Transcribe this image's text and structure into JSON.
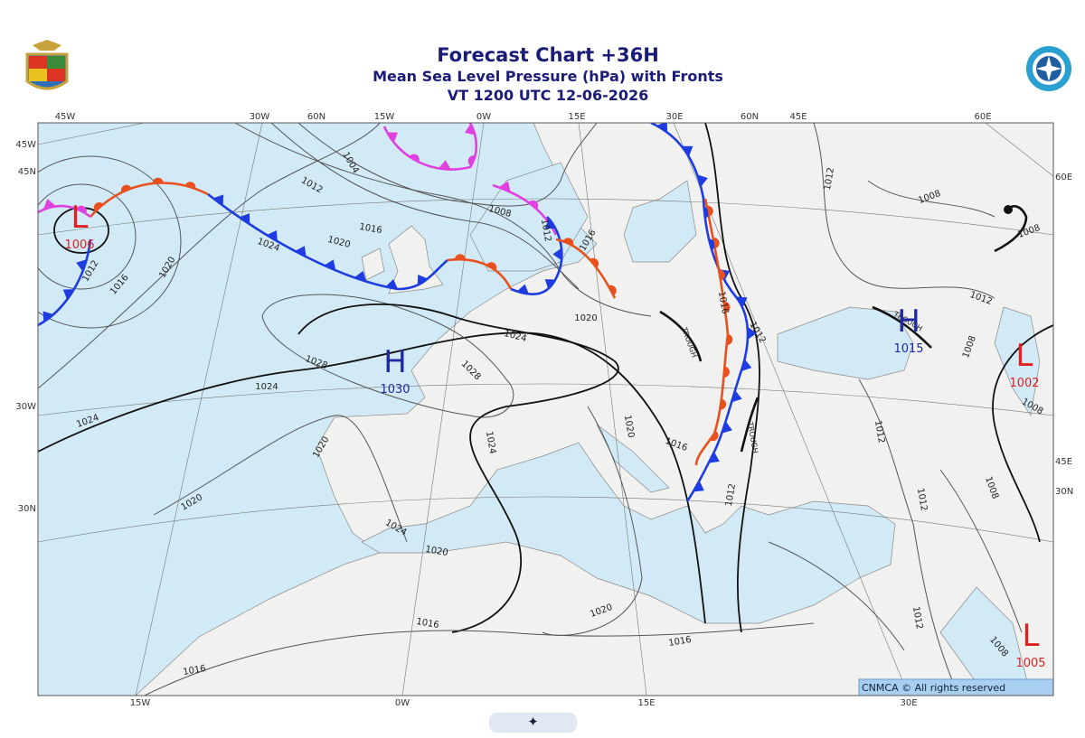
{
  "header": {
    "title": "Forecast Chart +36H",
    "subtitle": "Mean Sea Level Pressure (hPa) with Fronts",
    "valid_time": "VT 1200 UTC 12-06-2026"
  },
  "map": {
    "lon_labels_top": [
      "45W",
      "30W",
      "60N",
      "15W",
      "0W",
      "15E",
      "30E",
      "60N",
      "45E",
      "60E"
    ],
    "lon_labels_bottom": [
      "15W",
      "0W",
      "15E",
      "30E"
    ],
    "lat_labels_left": [
      "45W",
      "45N",
      "30W",
      "30N"
    ],
    "lat_labels_right": [
      "60E",
      "45E",
      "30N"
    ],
    "pressure_centers": [
      {
        "symbol": "L",
        "value": "1006",
        "color": "#e02020"
      },
      {
        "symbol": "H",
        "value": "1030",
        "color": "#1e2aa0"
      },
      {
        "symbol": "H",
        "value": "1015",
        "color": "#1e2aa0"
      },
      {
        "symbol": "L",
        "value": "1002",
        "color": "#e02020"
      },
      {
        "symbol": "L",
        "value": "1005",
        "color": "#e02020"
      }
    ],
    "isobar_labels": [
      "1004",
      "1012",
      "1016",
      "1020",
      "1008",
      "1012",
      "1016",
      "1024",
      "1012",
      "1016",
      "1020",
      "1020",
      "1024",
      "1028",
      "1028",
      "1024",
      "1024",
      "1020",
      "1024",
      "1020",
      "1016",
      "1016",
      "1012",
      "1012",
      "1008",
      "1008",
      "1012",
      "1008",
      "1008",
      "1012",
      "1012",
      "1008",
      "1012",
      "1020",
      "1024",
      "1020",
      "1020",
      "1016",
      "1016",
      "1016",
      "1012",
      "1008"
    ],
    "trough_labels": [
      "TROUGH",
      "TROUGH",
      "TROUGH"
    ],
    "copyright": "CNMCA © All rights reserved"
  },
  "footer": {
    "button": "✦"
  }
}
